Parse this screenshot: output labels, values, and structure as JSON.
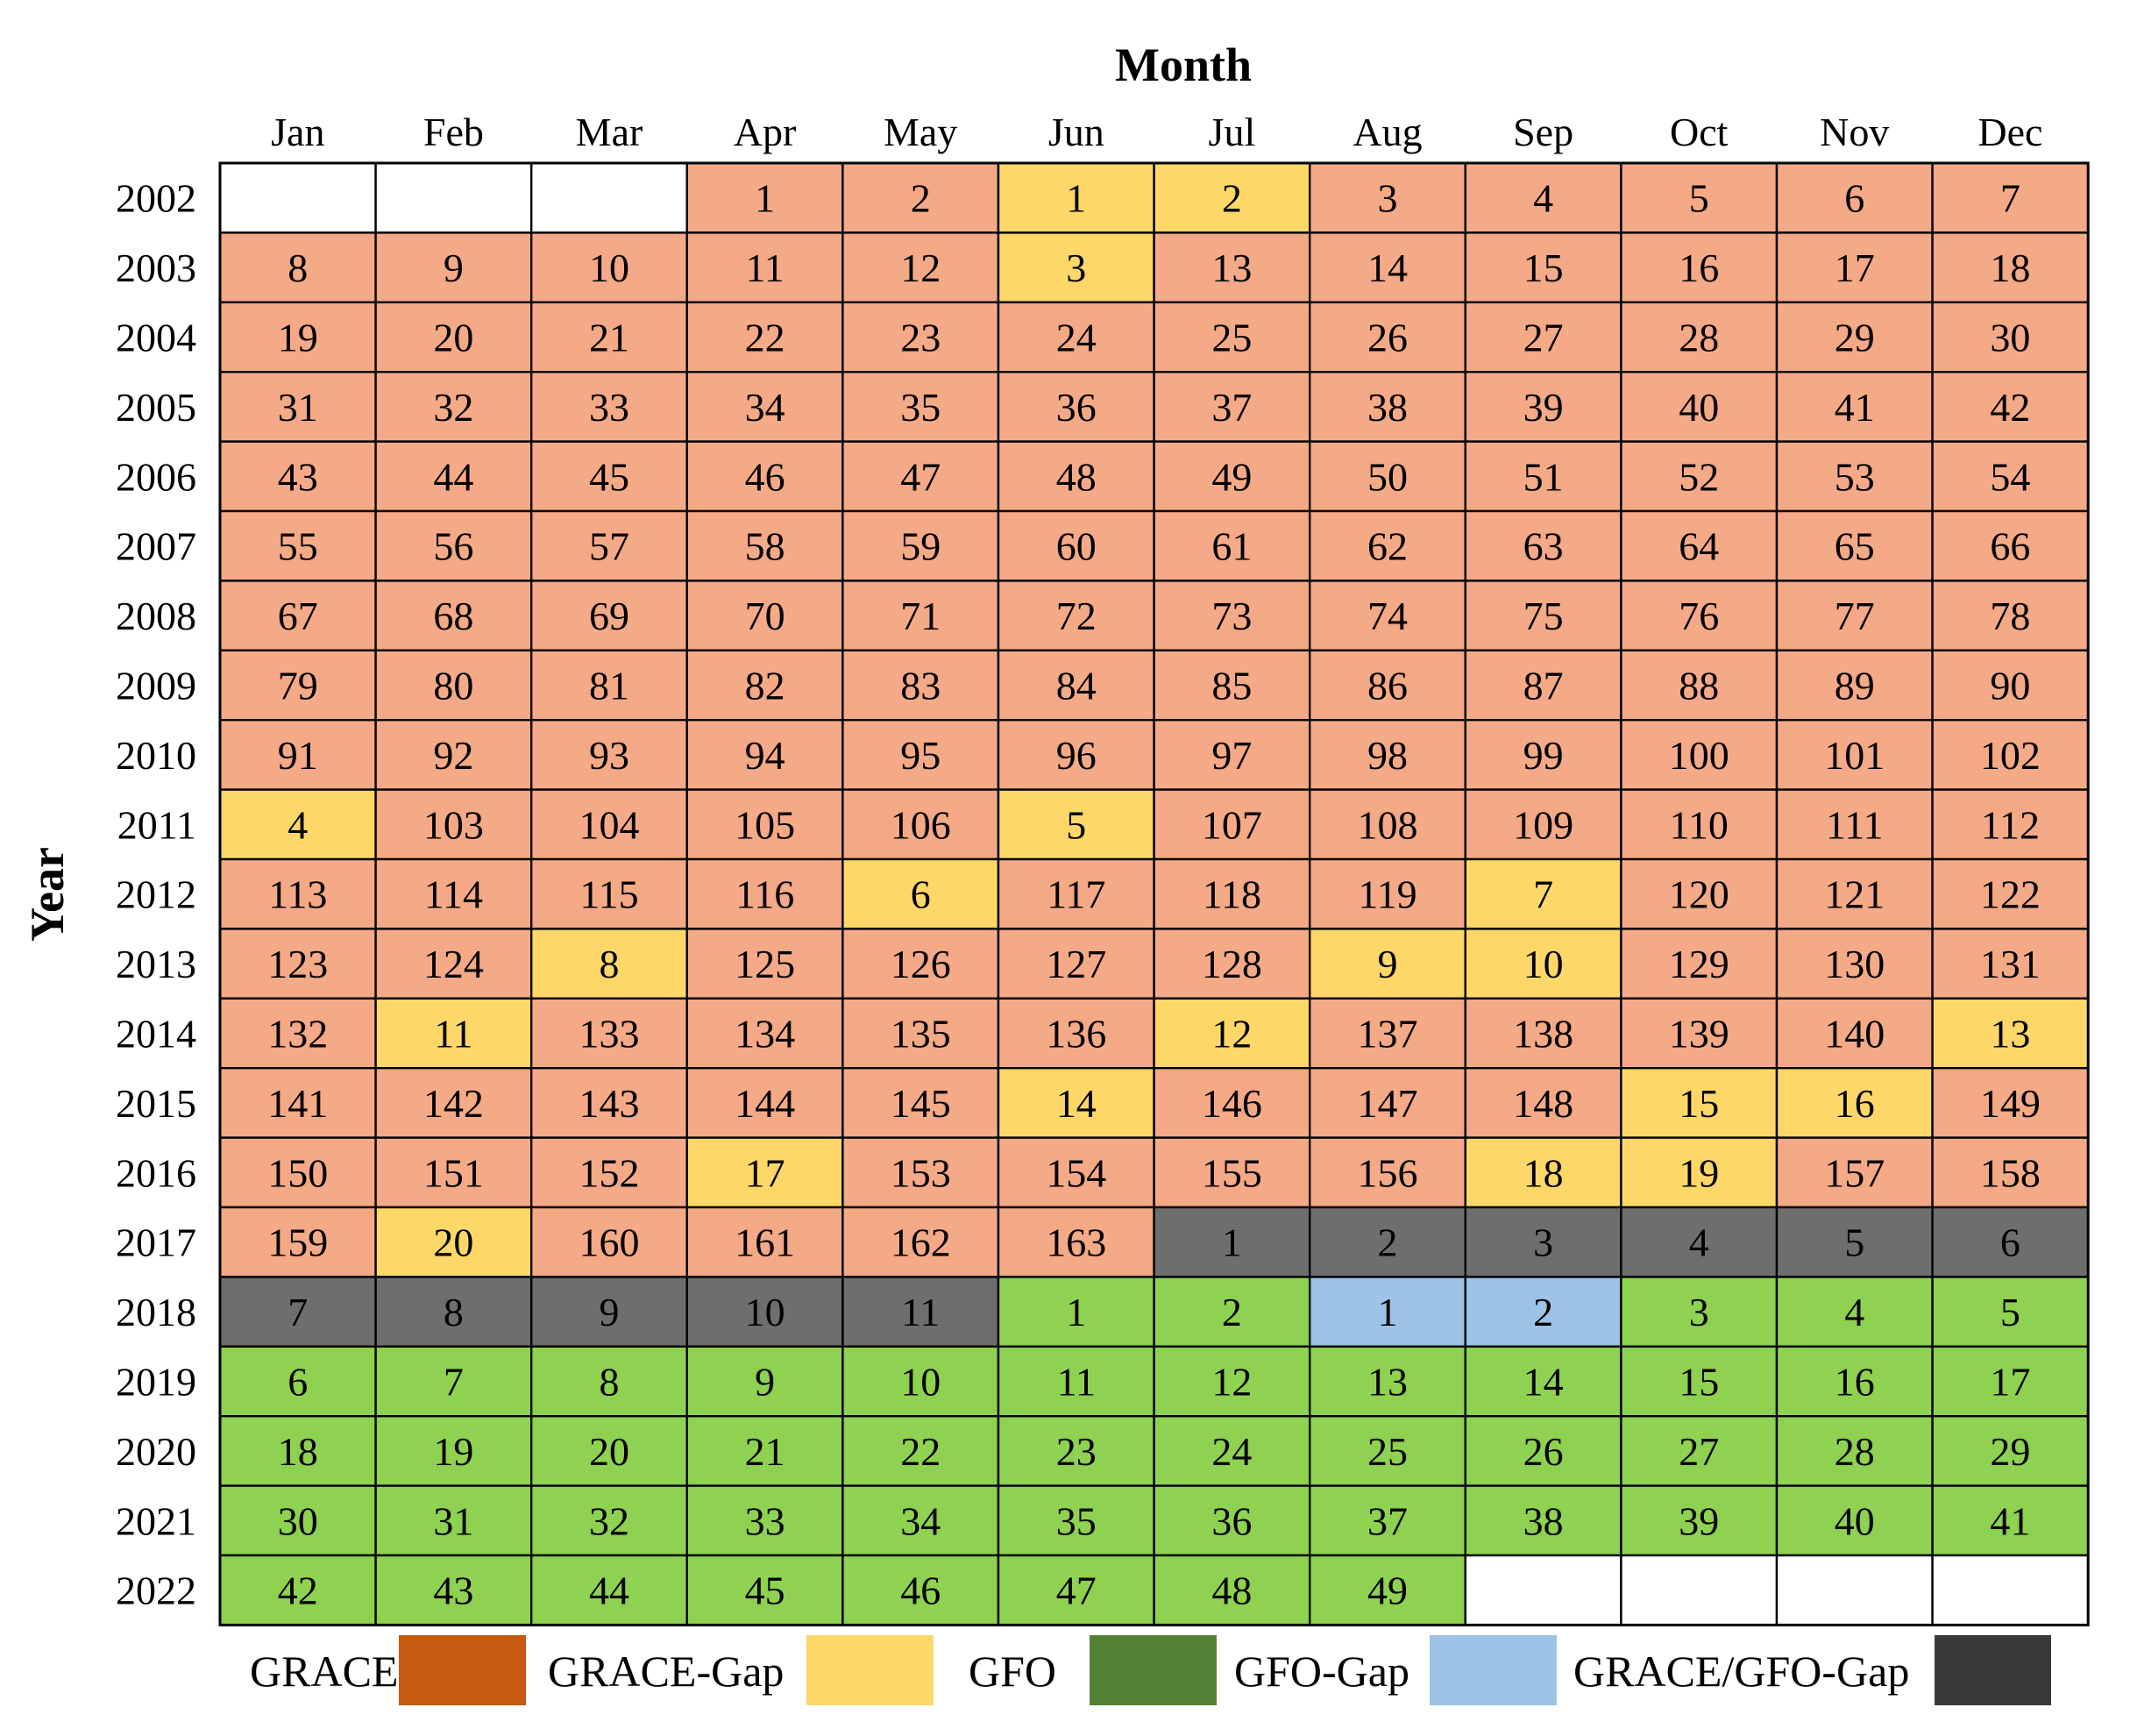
{
  "chart_data": {
    "type": "table",
    "title": "",
    "xlabel": "Month",
    "ylabel": "Year",
    "months": [
      "Jan",
      "Feb",
      "Mar",
      "Apr",
      "May",
      "Jun",
      "Jul",
      "Aug",
      "Sep",
      "Oct",
      "Nov",
      "Dec"
    ],
    "years": [
      "2002",
      "2003",
      "2004",
      "2005",
      "2006",
      "2007",
      "2008",
      "2009",
      "2010",
      "2011",
      "2012",
      "2013",
      "2014",
      "2015",
      "2016",
      "2017",
      "2018",
      "2019",
      "2020",
      "2021",
      "2022"
    ],
    "category_colors": {
      "GRACE": "#F4A987",
      "GRACE-Gap": "#FDD868",
      "GFO": "#8FD150",
      "GFO-Gap": "#9DC3E6",
      "GRACE/GFO-Gap": "#6E6E6E",
      "none": "#FFFFFF"
    },
    "cells": [
      [
        [
          "",
          ""
        ],
        [
          "",
          ""
        ],
        [
          "",
          ""
        ],
        [
          "1",
          "GRACE"
        ],
        [
          "2",
          "GRACE"
        ],
        [
          "1",
          "GRACE-Gap"
        ],
        [
          "2",
          "GRACE-Gap"
        ],
        [
          "3",
          "GRACE"
        ],
        [
          "4",
          "GRACE"
        ],
        [
          "5",
          "GRACE"
        ],
        [
          "6",
          "GRACE"
        ],
        [
          "7",
          "GRACE"
        ]
      ],
      [
        [
          "8",
          "GRACE"
        ],
        [
          "9",
          "GRACE"
        ],
        [
          "10",
          "GRACE"
        ],
        [
          "11",
          "GRACE"
        ],
        [
          "12",
          "GRACE"
        ],
        [
          "3",
          "GRACE-Gap"
        ],
        [
          "13",
          "GRACE"
        ],
        [
          "14",
          "GRACE"
        ],
        [
          "15",
          "GRACE"
        ],
        [
          "16",
          "GRACE"
        ],
        [
          "17",
          "GRACE"
        ],
        [
          "18",
          "GRACE"
        ]
      ],
      [
        [
          "19",
          "GRACE"
        ],
        [
          "20",
          "GRACE"
        ],
        [
          "21",
          "GRACE"
        ],
        [
          "22",
          "GRACE"
        ],
        [
          "23",
          "GRACE"
        ],
        [
          "24",
          "GRACE"
        ],
        [
          "25",
          "GRACE"
        ],
        [
          "26",
          "GRACE"
        ],
        [
          "27",
          "GRACE"
        ],
        [
          "28",
          "GRACE"
        ],
        [
          "29",
          "GRACE"
        ],
        [
          "30",
          "GRACE"
        ]
      ],
      [
        [
          "31",
          "GRACE"
        ],
        [
          "32",
          "GRACE"
        ],
        [
          "33",
          "GRACE"
        ],
        [
          "34",
          "GRACE"
        ],
        [
          "35",
          "GRACE"
        ],
        [
          "36",
          "GRACE"
        ],
        [
          "37",
          "GRACE"
        ],
        [
          "38",
          "GRACE"
        ],
        [
          "39",
          "GRACE"
        ],
        [
          "40",
          "GRACE"
        ],
        [
          "41",
          "GRACE"
        ],
        [
          "42",
          "GRACE"
        ]
      ],
      [
        [
          "43",
          "GRACE"
        ],
        [
          "44",
          "GRACE"
        ],
        [
          "45",
          "GRACE"
        ],
        [
          "46",
          "GRACE"
        ],
        [
          "47",
          "GRACE"
        ],
        [
          "48",
          "GRACE"
        ],
        [
          "49",
          "GRACE"
        ],
        [
          "50",
          "GRACE"
        ],
        [
          "51",
          "GRACE"
        ],
        [
          "52",
          "GRACE"
        ],
        [
          "53",
          "GRACE"
        ],
        [
          "54",
          "GRACE"
        ]
      ],
      [
        [
          "55",
          "GRACE"
        ],
        [
          "56",
          "GRACE"
        ],
        [
          "57",
          "GRACE"
        ],
        [
          "58",
          "GRACE"
        ],
        [
          "59",
          "GRACE"
        ],
        [
          "60",
          "GRACE"
        ],
        [
          "61",
          "GRACE"
        ],
        [
          "62",
          "GRACE"
        ],
        [
          "63",
          "GRACE"
        ],
        [
          "64",
          "GRACE"
        ],
        [
          "65",
          "GRACE"
        ],
        [
          "66",
          "GRACE"
        ]
      ],
      [
        [
          "67",
          "GRACE"
        ],
        [
          "68",
          "GRACE"
        ],
        [
          "69",
          "GRACE"
        ],
        [
          "70",
          "GRACE"
        ],
        [
          "71",
          "GRACE"
        ],
        [
          "72",
          "GRACE"
        ],
        [
          "73",
          "GRACE"
        ],
        [
          "74",
          "GRACE"
        ],
        [
          "75",
          "GRACE"
        ],
        [
          "76",
          "GRACE"
        ],
        [
          "77",
          "GRACE"
        ],
        [
          "78",
          "GRACE"
        ]
      ],
      [
        [
          "79",
          "GRACE"
        ],
        [
          "80",
          "GRACE"
        ],
        [
          "81",
          "GRACE"
        ],
        [
          "82",
          "GRACE"
        ],
        [
          "83",
          "GRACE"
        ],
        [
          "84",
          "GRACE"
        ],
        [
          "85",
          "GRACE"
        ],
        [
          "86",
          "GRACE"
        ],
        [
          "87",
          "GRACE"
        ],
        [
          "88",
          "GRACE"
        ],
        [
          "89",
          "GRACE"
        ],
        [
          "90",
          "GRACE"
        ]
      ],
      [
        [
          "91",
          "GRACE"
        ],
        [
          "92",
          "GRACE"
        ],
        [
          "93",
          "GRACE"
        ],
        [
          "94",
          "GRACE"
        ],
        [
          "95",
          "GRACE"
        ],
        [
          "96",
          "GRACE"
        ],
        [
          "97",
          "GRACE"
        ],
        [
          "98",
          "GRACE"
        ],
        [
          "99",
          "GRACE"
        ],
        [
          "100",
          "GRACE"
        ],
        [
          "101",
          "GRACE"
        ],
        [
          "102",
          "GRACE"
        ]
      ],
      [
        [
          "4",
          "GRACE-Gap"
        ],
        [
          "103",
          "GRACE"
        ],
        [
          "104",
          "GRACE"
        ],
        [
          "105",
          "GRACE"
        ],
        [
          "106",
          "GRACE"
        ],
        [
          "5",
          "GRACE-Gap"
        ],
        [
          "107",
          "GRACE"
        ],
        [
          "108",
          "GRACE"
        ],
        [
          "109",
          "GRACE"
        ],
        [
          "110",
          "GRACE"
        ],
        [
          "111",
          "GRACE"
        ],
        [
          "112",
          "GRACE"
        ]
      ],
      [
        [
          "113",
          "GRACE"
        ],
        [
          "114",
          "GRACE"
        ],
        [
          "115",
          "GRACE"
        ],
        [
          "116",
          "GRACE"
        ],
        [
          "6",
          "GRACE-Gap"
        ],
        [
          "117",
          "GRACE"
        ],
        [
          "118",
          "GRACE"
        ],
        [
          "119",
          "GRACE"
        ],
        [
          "7",
          "GRACE-Gap"
        ],
        [
          "120",
          "GRACE"
        ],
        [
          "121",
          "GRACE"
        ],
        [
          "122",
          "GRACE"
        ]
      ],
      [
        [
          "123",
          "GRACE"
        ],
        [
          "124",
          "GRACE"
        ],
        [
          "8",
          "GRACE-Gap"
        ],
        [
          "125",
          "GRACE"
        ],
        [
          "126",
          "GRACE"
        ],
        [
          "127",
          "GRACE"
        ],
        [
          "128",
          "GRACE"
        ],
        [
          "9",
          "GRACE-Gap"
        ],
        [
          "10",
          "GRACE-Gap"
        ],
        [
          "129",
          "GRACE"
        ],
        [
          "130",
          "GRACE"
        ],
        [
          "131",
          "GRACE"
        ]
      ],
      [
        [
          "132",
          "GRACE"
        ],
        [
          "11",
          "GRACE-Gap"
        ],
        [
          "133",
          "GRACE"
        ],
        [
          "134",
          "GRACE"
        ],
        [
          "135",
          "GRACE"
        ],
        [
          "136",
          "GRACE"
        ],
        [
          "12",
          "GRACE-Gap"
        ],
        [
          "137",
          "GRACE"
        ],
        [
          "138",
          "GRACE"
        ],
        [
          "139",
          "GRACE"
        ],
        [
          "140",
          "GRACE"
        ],
        [
          "13",
          "GRACE-Gap"
        ]
      ],
      [
        [
          "141",
          "GRACE"
        ],
        [
          "142",
          "GRACE"
        ],
        [
          "143",
          "GRACE"
        ],
        [
          "144",
          "GRACE"
        ],
        [
          "145",
          "GRACE"
        ],
        [
          "14",
          "GRACE-Gap"
        ],
        [
          "146",
          "GRACE"
        ],
        [
          "147",
          "GRACE"
        ],
        [
          "148",
          "GRACE"
        ],
        [
          "15",
          "GRACE-Gap"
        ],
        [
          "16",
          "GRACE-Gap"
        ],
        [
          "149",
          "GRACE"
        ]
      ],
      [
        [
          "150",
          "GRACE"
        ],
        [
          "151",
          "GRACE"
        ],
        [
          "152",
          "GRACE"
        ],
        [
          "17",
          "GRACE-Gap"
        ],
        [
          "153",
          "GRACE"
        ],
        [
          "154",
          "GRACE"
        ],
        [
          "155",
          "GRACE"
        ],
        [
          "156",
          "GRACE"
        ],
        [
          "18",
          "GRACE-Gap"
        ],
        [
          "19",
          "GRACE-Gap"
        ],
        [
          "157",
          "GRACE"
        ],
        [
          "158",
          "GRACE"
        ]
      ],
      [
        [
          "159",
          "GRACE"
        ],
        [
          "20",
          "GRACE-Gap"
        ],
        [
          "160",
          "GRACE"
        ],
        [
          "161",
          "GRACE"
        ],
        [
          "162",
          "GRACE"
        ],
        [
          "163",
          "GRACE"
        ],
        [
          "1",
          "GRACE/GFO-Gap"
        ],
        [
          "2",
          "GRACE/GFO-Gap"
        ],
        [
          "3",
          "GRACE/GFO-Gap"
        ],
        [
          "4",
          "GRACE/GFO-Gap"
        ],
        [
          "5",
          "GRACE/GFO-Gap"
        ],
        [
          "6",
          "GRACE/GFO-Gap"
        ]
      ],
      [
        [
          "7",
          "GRACE/GFO-Gap"
        ],
        [
          "8",
          "GRACE/GFO-Gap"
        ],
        [
          "9",
          "GRACE/GFO-Gap"
        ],
        [
          "10",
          "GRACE/GFO-Gap"
        ],
        [
          "11",
          "GRACE/GFO-Gap"
        ],
        [
          "1",
          "GFO"
        ],
        [
          "2",
          "GFO"
        ],
        [
          "1",
          "GFO-Gap"
        ],
        [
          "2",
          "GFO-Gap"
        ],
        [
          "3",
          "GFO"
        ],
        [
          "4",
          "GFO"
        ],
        [
          "5",
          "GFO"
        ]
      ],
      [
        [
          "6",
          "GFO"
        ],
        [
          "7",
          "GFO"
        ],
        [
          "8",
          "GFO"
        ],
        [
          "9",
          "GFO"
        ],
        [
          "10",
          "GFO"
        ],
        [
          "11",
          "GFO"
        ],
        [
          "12",
          "GFO"
        ],
        [
          "13",
          "GFO"
        ],
        [
          "14",
          "GFO"
        ],
        [
          "15",
          "GFO"
        ],
        [
          "16",
          "GFO"
        ],
        [
          "17",
          "GFO"
        ]
      ],
      [
        [
          "18",
          "GFO"
        ],
        [
          "19",
          "GFO"
        ],
        [
          "20",
          "GFO"
        ],
        [
          "21",
          "GFO"
        ],
        [
          "22",
          "GFO"
        ],
        [
          "23",
          "GFO"
        ],
        [
          "24",
          "GFO"
        ],
        [
          "25",
          "GFO"
        ],
        [
          "26",
          "GFO"
        ],
        [
          "27",
          "GFO"
        ],
        [
          "28",
          "GFO"
        ],
        [
          "29",
          "GFO"
        ]
      ],
      [
        [
          "30",
          "GFO"
        ],
        [
          "31",
          "GFO"
        ],
        [
          "32",
          "GFO"
        ],
        [
          "33",
          "GFO"
        ],
        [
          "34",
          "GFO"
        ],
        [
          "35",
          "GFO"
        ],
        [
          "36",
          "GFO"
        ],
        [
          "37",
          "GFO"
        ],
        [
          "38",
          "GFO"
        ],
        [
          "39",
          "GFO"
        ],
        [
          "40",
          "GFO"
        ],
        [
          "41",
          "GFO"
        ]
      ],
      [
        [
          "42",
          "GFO"
        ],
        [
          "43",
          "GFO"
        ],
        [
          "44",
          "GFO"
        ],
        [
          "45",
          "GFO"
        ],
        [
          "46",
          "GFO"
        ],
        [
          "47",
          "GFO"
        ],
        [
          "48",
          "GFO"
        ],
        [
          "49",
          "GFO"
        ],
        [
          "",
          ""
        ],
        [
          "",
          ""
        ],
        [
          "",
          ""
        ],
        [
          "",
          ""
        ]
      ]
    ],
    "legend": {
      "placement": "bottom",
      "entries": [
        {
          "label": "GRACE",
          "color": "#C55A11"
        },
        {
          "label": "GRACE-Gap",
          "color": "#FDD868"
        },
        {
          "label": "GFO",
          "color": "#548235"
        },
        {
          "label": "GFO-Gap",
          "color": "#9DC3E6"
        },
        {
          "label": "GRACE/GFO-Gap",
          "color": "#3A3A3A"
        }
      ]
    }
  }
}
